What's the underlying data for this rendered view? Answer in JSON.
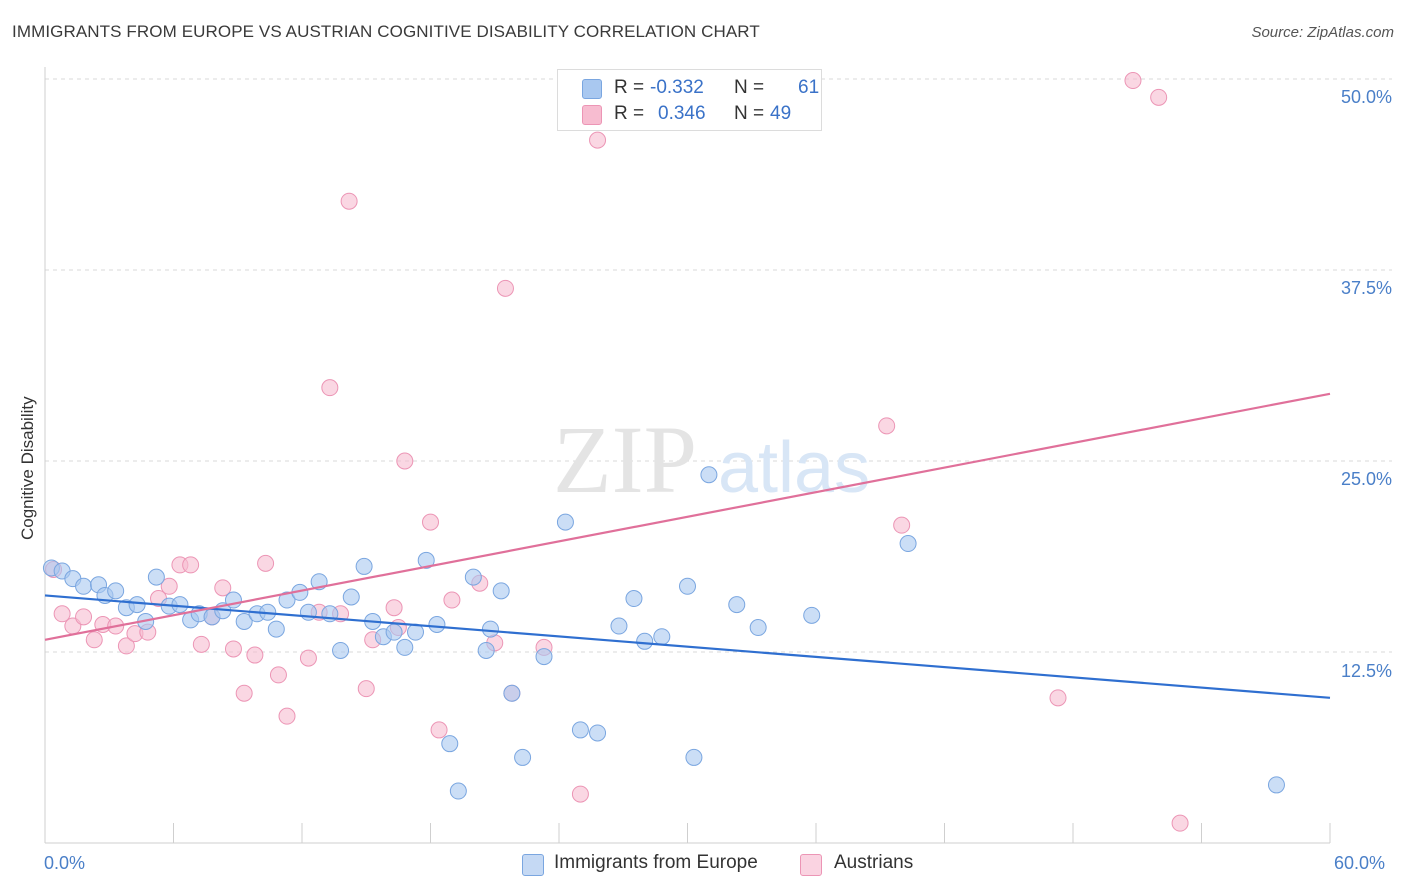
{
  "header": {
    "title": "IMMIGRANTS FROM EUROPE VS AUSTRIAN COGNITIVE DISABILITY CORRELATION CHART",
    "source": "Source: ZipAtlas.com"
  },
  "watermark": {
    "zip": "ZIP",
    "atlas": "atlas"
  },
  "legend": {
    "blue": {
      "r_label": "R =",
      "r_value": "-0.332",
      "n_label": "N =",
      "n_value": "61"
    },
    "pink": {
      "r_label": "R =",
      "r_value": "0.346",
      "n_label": "N =",
      "n_value": "49"
    }
  },
  "bottom_legend": {
    "blue": "Immigrants from Europe",
    "pink": "Austrians"
  },
  "colors": {
    "blue_fill": "#a9c8f0",
    "blue_stroke": "#7aa6e0",
    "blue_line": "#2f6fd0",
    "pink_fill": "#f7bcd0",
    "pink_stroke": "#ec95b5",
    "pink_line": "#e0709a",
    "tick_text": "#4a7fc8",
    "grid": "#d8d8d8"
  },
  "chart_data": {
    "type": "scatter",
    "title": "IMMIGRANTS FROM EUROPE VS AUSTRIAN COGNITIVE DISABILITY CORRELATION CHART",
    "xlabel": "",
    "ylabel": "Cognitive Disability",
    "xlim": [
      0,
      60
    ],
    "ylim": [
      0,
      50
    ],
    "x_tick_labels": [
      "0.0%",
      "60.0%"
    ],
    "y_ticks": [
      12.5,
      25.0,
      37.5,
      50.0
    ],
    "y_tick_labels": [
      "12.5%",
      "25.0%",
      "37.5%",
      "50.0%"
    ],
    "grid": "horizontal dashed",
    "legend_position": "top-center",
    "series": [
      {
        "name": "Immigrants from Europe",
        "color": "#a9c8f0",
        "trend": {
          "x": [
            0,
            60
          ],
          "y": [
            16.2,
            9.5
          ]
        },
        "points": [
          [
            0.3,
            18.0
          ],
          [
            0.8,
            17.8
          ],
          [
            1.3,
            17.3
          ],
          [
            1.8,
            16.8
          ],
          [
            2.5,
            16.9
          ],
          [
            2.8,
            16.2
          ],
          [
            3.3,
            16.5
          ],
          [
            3.8,
            15.4
          ],
          [
            4.3,
            15.6
          ],
          [
            4.7,
            14.5
          ],
          [
            5.2,
            17.4
          ],
          [
            5.8,
            15.5
          ],
          [
            6.3,
            15.6
          ],
          [
            6.8,
            14.6
          ],
          [
            7.2,
            15.0
          ],
          [
            7.8,
            14.8
          ],
          [
            8.3,
            15.2
          ],
          [
            8.8,
            15.9
          ],
          [
            9.3,
            14.5
          ],
          [
            9.9,
            15.0
          ],
          [
            10.4,
            15.1
          ],
          [
            10.8,
            14.0
          ],
          [
            11.3,
            15.9
          ],
          [
            11.9,
            16.4
          ],
          [
            12.3,
            15.1
          ],
          [
            12.8,
            17.1
          ],
          [
            13.3,
            15.0
          ],
          [
            13.8,
            12.6
          ],
          [
            14.3,
            16.1
          ],
          [
            14.9,
            18.1
          ],
          [
            15.3,
            14.5
          ],
          [
            15.8,
            13.5
          ],
          [
            16.3,
            13.8
          ],
          [
            16.8,
            12.8
          ],
          [
            17.3,
            13.8
          ],
          [
            17.8,
            18.5
          ],
          [
            18.3,
            14.3
          ],
          [
            18.9,
            6.5
          ],
          [
            19.3,
            3.4
          ],
          [
            20.0,
            17.4
          ],
          [
            20.6,
            12.6
          ],
          [
            20.8,
            14.0
          ],
          [
            21.3,
            16.5
          ],
          [
            21.8,
            9.8
          ],
          [
            22.3,
            5.6
          ],
          [
            23.3,
            12.2
          ],
          [
            24.3,
            21.0
          ],
          [
            25.0,
            7.4
          ],
          [
            25.8,
            7.2
          ],
          [
            26.8,
            14.2
          ],
          [
            27.5,
            16.0
          ],
          [
            28.0,
            13.2
          ],
          [
            28.8,
            13.5
          ],
          [
            30.0,
            16.8
          ],
          [
            30.3,
            5.6
          ],
          [
            31.0,
            24.1
          ],
          [
            32.3,
            15.6
          ],
          [
            33.3,
            14.1
          ],
          [
            35.8,
            14.9
          ],
          [
            40.3,
            19.6
          ],
          [
            57.5,
            3.8
          ]
        ]
      },
      {
        "name": "Austrians",
        "color": "#f7bcd0",
        "trend": {
          "x": [
            0,
            60
          ],
          "y": [
            13.3,
            29.4
          ]
        },
        "points": [
          [
            0.4,
            17.9
          ],
          [
            0.8,
            15.0
          ],
          [
            1.3,
            14.2
          ],
          [
            1.8,
            14.8
          ],
          [
            2.3,
            13.3
          ],
          [
            2.7,
            14.3
          ],
          [
            3.3,
            14.2
          ],
          [
            3.8,
            12.9
          ],
          [
            4.2,
            13.7
          ],
          [
            4.8,
            13.8
          ],
          [
            5.3,
            16.0
          ],
          [
            5.8,
            16.8
          ],
          [
            6.3,
            18.2
          ],
          [
            6.8,
            18.2
          ],
          [
            7.3,
            13.0
          ],
          [
            7.8,
            14.8
          ],
          [
            8.3,
            16.7
          ],
          [
            8.8,
            12.7
          ],
          [
            9.3,
            9.8
          ],
          [
            9.8,
            12.3
          ],
          [
            10.3,
            18.3
          ],
          [
            10.9,
            11.0
          ],
          [
            11.3,
            8.3
          ],
          [
            12.3,
            12.1
          ],
          [
            12.8,
            15.1
          ],
          [
            13.3,
            29.8
          ],
          [
            13.8,
            15.0
          ],
          [
            14.2,
            42.0
          ],
          [
            15.0,
            10.1
          ],
          [
            15.3,
            13.3
          ],
          [
            16.3,
            15.4
          ],
          [
            16.5,
            14.1
          ],
          [
            16.8,
            25.0
          ],
          [
            18.0,
            21.0
          ],
          [
            18.4,
            7.4
          ],
          [
            19.0,
            15.9
          ],
          [
            20.3,
            17.0
          ],
          [
            21.0,
            13.1
          ],
          [
            21.5,
            36.3
          ],
          [
            21.8,
            9.8
          ],
          [
            23.3,
            12.8
          ],
          [
            25.0,
            3.2
          ],
          [
            25.8,
            46.0
          ],
          [
            39.3,
            27.3
          ],
          [
            40.0,
            20.8
          ],
          [
            47.3,
            9.5
          ],
          [
            50.8,
            49.9
          ],
          [
            52.0,
            48.8
          ],
          [
            53.0,
            1.3
          ]
        ]
      }
    ]
  }
}
